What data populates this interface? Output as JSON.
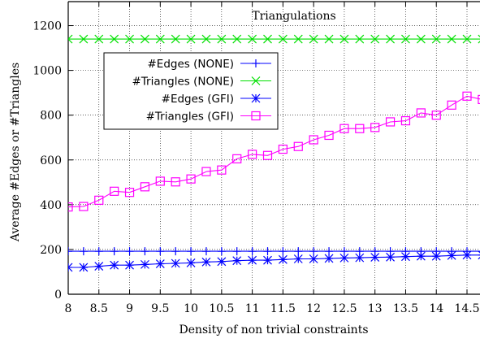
{
  "chart_data": {
    "type": "line",
    "title": "Triangulations",
    "xlabel": "Density of non trivial constraints",
    "ylabel": "Average #Edges or #Triangles",
    "xlim": [
      8,
      14.5
    ],
    "ylim": [
      0,
      1300
    ],
    "x_ticks": [
      "8",
      "8.5",
      "9",
      "9.5",
      "10",
      "10.5",
      "11",
      "11.5",
      "12",
      "12.5",
      "13",
      "13.5",
      "14",
      "14.5"
    ],
    "y_ticks": [
      "0",
      "200",
      "400",
      "600",
      "800",
      "1000",
      "1200"
    ],
    "grid": true,
    "legend_position": "upper-left",
    "x": [
      8,
      8.25,
      8.5,
      8.75,
      9,
      9.25,
      9.5,
      9.75,
      10,
      10.25,
      10.5,
      10.75,
      11,
      11.25,
      11.5,
      11.75,
      12,
      12.25,
      12.5,
      12.75,
      13,
      13.25,
      13.5,
      13.75,
      14,
      14.25,
      14.5,
      14.75
    ],
    "series": [
      {
        "name": "#Edges (NONE)",
        "color": "#0000ff",
        "marker": "plus",
        "values": [
          192,
          192,
          192,
          192,
          192,
          192,
          192,
          192,
          192,
          192,
          192,
          192,
          192,
          192,
          192,
          192,
          192,
          192,
          192,
          192,
          192,
          192,
          192,
          192,
          192,
          192,
          192,
          192
        ]
      },
      {
        "name": "#Triangles (NONE)",
        "color": "#00e000",
        "marker": "x",
        "values": [
          1140,
          1140,
          1140,
          1140,
          1140,
          1140,
          1140,
          1140,
          1140,
          1140,
          1140,
          1140,
          1140,
          1140,
          1140,
          1140,
          1140,
          1140,
          1140,
          1140,
          1140,
          1140,
          1140,
          1140,
          1140,
          1140,
          1140,
          1140
        ]
      },
      {
        "name": "#Edges (GFI)",
        "color": "#0000ff",
        "marker": "star",
        "values": [
          120,
          120,
          125,
          130,
          130,
          133,
          136,
          138,
          140,
          144,
          146,
          150,
          152,
          152,
          155,
          158,
          158,
          160,
          162,
          163,
          165,
          166,
          168,
          170,
          170,
          173,
          175,
          175
        ]
      },
      {
        "name": "#Triangles (GFI)",
        "color": "#ff00ff",
        "marker": "square",
        "values": [
          390,
          392,
          420,
          460,
          455,
          480,
          505,
          502,
          515,
          548,
          555,
          605,
          625,
          620,
          648,
          660,
          690,
          710,
          740,
          740,
          745,
          770,
          775,
          810,
          800,
          845,
          885,
          870
        ]
      }
    ]
  }
}
